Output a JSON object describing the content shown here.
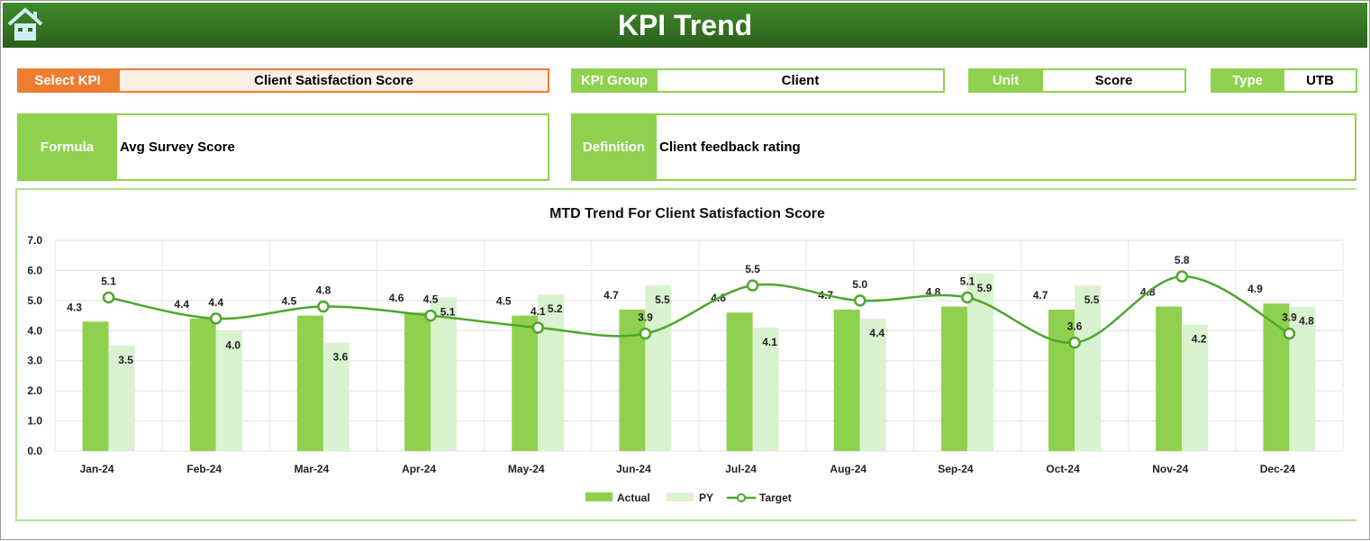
{
  "header": {
    "title": "KPI Trend",
    "home_icon": "home-icon"
  },
  "fields": {
    "select_kpi_label": "Select KPI",
    "select_kpi_value": "Client Satisfaction Score",
    "kpi_group_label": "KPI Group",
    "kpi_group_value": "Client",
    "unit_label": "Unit",
    "unit_value": "Score",
    "type_label": "Type",
    "type_value": "UTB",
    "formula_label": "Formula",
    "formula_value": "Avg Survey Score",
    "definition_label": "Definition",
    "definition_value": "Client feedback rating"
  },
  "colors": {
    "accent_orange": "#ed7d31",
    "green": "#8fd14f",
    "light_green": "#d9f2d0",
    "line_green": "#4ea72e",
    "header_green": "#2f6b1f"
  },
  "chart_data": {
    "type": "bar",
    "title": "MTD Trend For Client Satisfaction Score",
    "categories": [
      "Jan-24",
      "Feb-24",
      "Mar-24",
      "Apr-24",
      "May-24",
      "Jun-24",
      "Jul-24",
      "Aug-24",
      "Sep-24",
      "Oct-24",
      "Nov-24",
      "Dec-24"
    ],
    "series": [
      {
        "name": "Actual",
        "kind": "bar",
        "color": "#8fd14f",
        "values": [
          4.3,
          4.4,
          4.5,
          4.6,
          4.5,
          4.7,
          4.6,
          4.7,
          4.8,
          4.7,
          4.8,
          4.9
        ]
      },
      {
        "name": "PY",
        "kind": "bar",
        "color": "#d9f2d0",
        "values": [
          3.5,
          4.0,
          3.6,
          5.1,
          5.2,
          5.5,
          4.1,
          4.4,
          5.9,
          5.5,
          4.2,
          4.8
        ]
      },
      {
        "name": "Target",
        "kind": "line",
        "color": "#4ea72e",
        "values": [
          5.1,
          4.4,
          4.8,
          4.5,
          4.1,
          3.9,
          5.5,
          5.0,
          5.1,
          3.6,
          5.8,
          3.9
        ]
      }
    ],
    "ylim": [
      0,
      7
    ],
    "yticks": [
      "0.0",
      "1.0",
      "2.0",
      "3.0",
      "4.0",
      "5.0",
      "6.0",
      "7.0"
    ],
    "grid": true,
    "legend": "bottom"
  }
}
